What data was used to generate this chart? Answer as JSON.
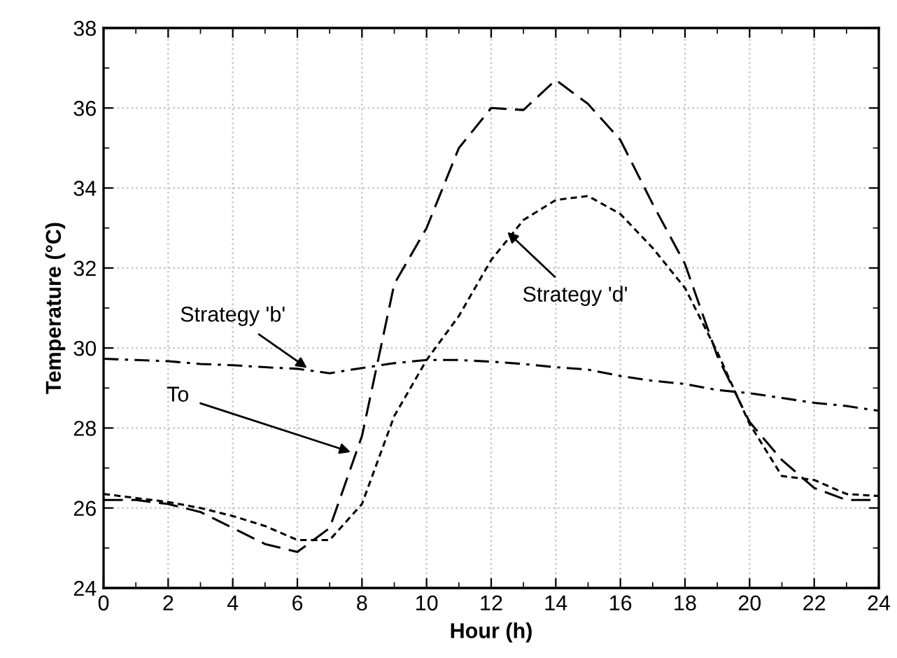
{
  "chart_data": {
    "type": "line",
    "xlabel": "Hour (h)",
    "ylabel": "Temperature (°C)",
    "x": [
      0,
      1,
      2,
      3,
      4,
      5,
      6,
      7,
      8,
      9,
      10,
      11,
      12,
      13,
      14,
      15,
      16,
      17,
      18,
      19,
      20,
      21,
      22,
      23,
      24
    ],
    "series": [
      {
        "color": "#000000",
        "line_style": "dashed",
        "values": [
          26.2,
          26.2,
          26.1,
          25.9,
          25.5,
          25.1,
          24.9,
          25.5,
          27.8,
          31.6,
          33.0,
          35.0,
          36.0,
          35.95,
          36.7,
          36.1,
          35.2,
          33.6,
          32.1,
          29.8,
          28.15,
          27.2,
          26.5,
          26.2,
          26.2
        ]
      },
      {
        "color": "#000000",
        "line_style": "dotted",
        "values": [
          26.35,
          26.25,
          26.15,
          26.0,
          25.8,
          25.55,
          25.2,
          25.2,
          26.1,
          28.3,
          29.7,
          30.8,
          32.2,
          33.2,
          33.7,
          33.8,
          33.35,
          32.5,
          31.5,
          29.9,
          28.1,
          26.8,
          26.7,
          26.35,
          26.3
        ]
      },
      {
        "color": "#000000",
        "line_style": "dashdot",
        "values": [
          29.73,
          29.7,
          29.67,
          29.6,
          29.57,
          29.52,
          29.48,
          29.37,
          29.5,
          29.62,
          29.7,
          29.7,
          29.66,
          29.6,
          29.52,
          29.46,
          29.3,
          29.18,
          29.1,
          28.95,
          28.87,
          28.75,
          28.63,
          28.55,
          28.43
        ]
      }
    ],
    "xlim": [
      0,
      24
    ],
    "xticks": [
      0,
      {
        "value": 1,
        "label": null
      },
      2,
      {
        "value": 3,
        "label": null
      },
      4,
      {
        "value": 5,
        "label": null
      },
      6,
      {
        "value": 7,
        "label": null
      },
      8,
      {
        "value": 9,
        "label": null
      },
      10,
      {
        "value": 11,
        "label": null
      },
      12,
      {
        "value": 13,
        "label": null
      },
      14,
      {
        "value": 15,
        "label": null
      },
      16,
      {
        "value": 17,
        "label": null
      },
      18,
      {
        "value": 19,
        "label": null
      },
      20,
      {
        "value": 21,
        "label": null
      },
      22,
      {
        "value": 23,
        "label": null
      },
      24
    ],
    "ylim": [
      24,
      38
    ],
    "yticks": [
      24,
      {
        "value": 25,
        "label": null
      },
      26,
      {
        "value": 27,
        "label": null
      },
      28,
      {
        "value": 29,
        "label": null
      },
      30,
      {
        "value": 31,
        "label": null
      },
      32,
      {
        "value": 33,
        "label": null
      },
      34,
      {
        "value": 35,
        "label": null
      },
      36,
      {
        "value": 37,
        "label": null
      },
      38
    ],
    "grid": true,
    "marker": "none",
    "annotations": [
      {
        "text": "Strategy 'b'",
        "x": 6.3,
        "y": 29.5
      },
      {
        "text": "To",
        "x": 7.65,
        "y": 27.4
      },
      {
        "text": "Strategy 'd'",
        "x": 12.5,
        "y": 32.9
      }
    ]
  }
}
